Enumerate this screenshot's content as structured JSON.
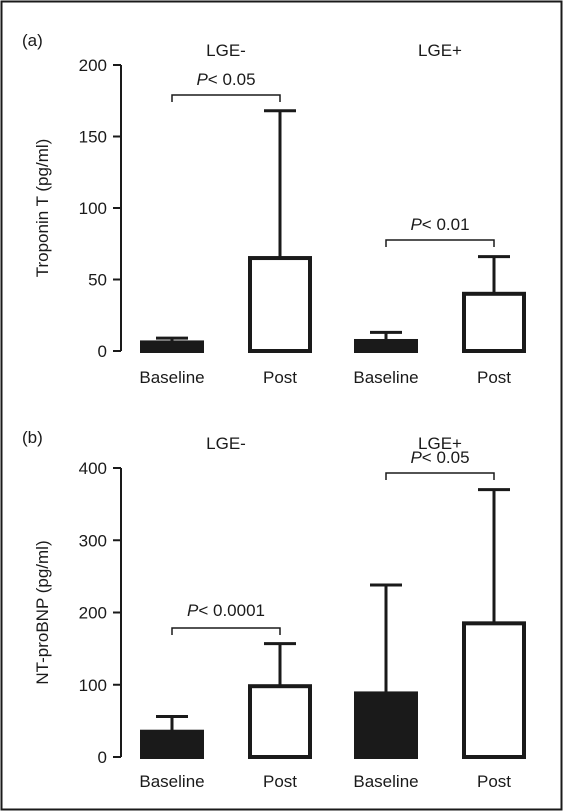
{
  "chart_data": [
    {
      "type": "bar",
      "panel_label": "(a)",
      "ylabel": "Troponin T (pg/ml)",
      "ylim": [
        0,
        200
      ],
      "yticks": [
        "0",
        "50",
        "100",
        "150",
        "200"
      ],
      "groups": [
        "LGE-",
        "LGE+"
      ],
      "categories": [
        "Baseline",
        "Post",
        "Baseline",
        "Post"
      ],
      "values": [
        6,
        65,
        7,
        40
      ],
      "error_upper": [
        9,
        168,
        13,
        66
      ],
      "bar_fill": [
        "filled",
        "open",
        "filled",
        "open"
      ],
      "annotations": [
        {
          "italic": "P",
          "text": "< 0.05",
          "group": "LGE-"
        },
        {
          "italic": "P",
          "text": "< 0.01",
          "group": "LGE+"
        }
      ]
    },
    {
      "type": "bar",
      "panel_label": "(b)",
      "ylabel": "NT-proBNP (pg/ml)",
      "ylim": [
        0,
        400
      ],
      "yticks": [
        "0",
        "100",
        "200",
        "300",
        "400"
      ],
      "groups": [
        "LGE-",
        "LGE+"
      ],
      "categories": [
        "Baseline",
        "Post",
        "Baseline",
        "Post"
      ],
      "values": [
        35,
        98,
        88,
        185
      ],
      "error_upper": [
        56,
        157,
        238,
        370
      ],
      "bar_fill": [
        "filled",
        "open",
        "filled",
        "open"
      ],
      "annotations": [
        {
          "italic": "P",
          "text": "< 0.0001",
          "group": "LGE-"
        },
        {
          "italic": "P",
          "text": "< 0.05",
          "group": "LGE+"
        }
      ]
    }
  ],
  "colors": {
    "bar_filled": "#1a1a1a",
    "bar_open": "#ffffff",
    "axis": "#1a1a1a",
    "frame": "#1a1a1a"
  }
}
